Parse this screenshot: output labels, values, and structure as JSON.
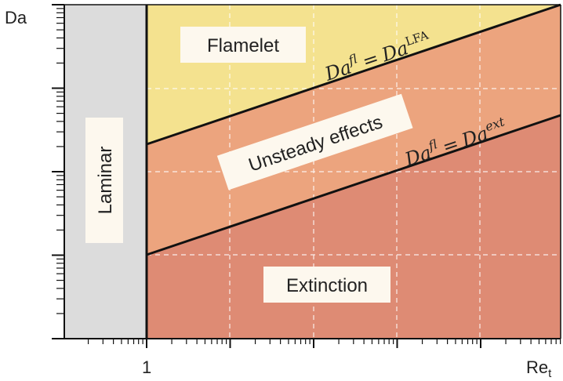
{
  "axes": {
    "y_label": "Da",
    "x_label_main": "Re",
    "x_label_sub": "t",
    "x_tick_label": "1"
  },
  "regions": {
    "laminar": "Laminar",
    "flamelet": "Flamelet",
    "unsteady": "Unsteady effects",
    "extinction": "Extinction"
  },
  "boundaries": {
    "lfa": {
      "lhs_base": "Da",
      "lhs_sup": "fl",
      "eq": "=",
      "rhs_base": "Da",
      "rhs_sup": "LFA"
    },
    "ext": {
      "lhs_base": "Da",
      "lhs_sup": "fl",
      "eq": "=",
      "rhs_base": "Da",
      "rhs_sup": "ext"
    }
  },
  "colors": {
    "laminar": "#dcdcdc",
    "flamelet": "#f4e28f",
    "unsteady": "#eca47e",
    "extinction": "#de8b74",
    "label_box": "#fdf8ee",
    "line": "#111111",
    "grid": "#ffffff"
  }
}
